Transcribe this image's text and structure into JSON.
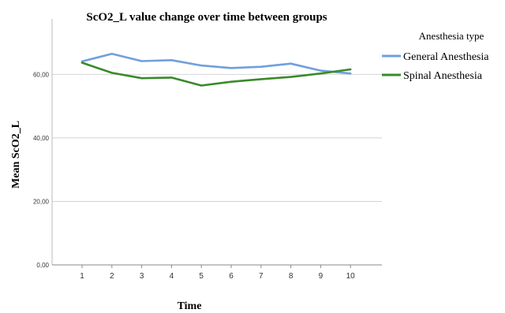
{
  "chart_data": {
    "type": "line",
    "title": "ScO2_L value change over time between groups",
    "xlabel": "Time",
    "ylabel": "Mean ScO2_L",
    "categories": [
      "1",
      "2",
      "3",
      "4",
      "5",
      "6",
      "7",
      "8",
      "9",
      "10"
    ],
    "yticks": [
      "0,00",
      "20,00",
      "40,00",
      "60,00"
    ],
    "ylim": [
      0,
      75
    ],
    "grid": "horizontal",
    "legend_title": "Anesthesia type",
    "legend_position": "right",
    "series": [
      {
        "name": "General Anesthesia",
        "color": "#6fa0dc",
        "values": [
          64.1,
          66.5,
          64.2,
          64.5,
          62.8,
          62.0,
          62.4,
          63.4,
          61.2,
          60.3
        ]
      },
      {
        "name": "Spinal Anesthesia",
        "color": "#3a8a2a",
        "values": [
          63.7,
          60.5,
          58.8,
          59.0,
          56.5,
          57.7,
          58.5,
          59.2,
          60.3,
          61.6
        ]
      }
    ]
  }
}
